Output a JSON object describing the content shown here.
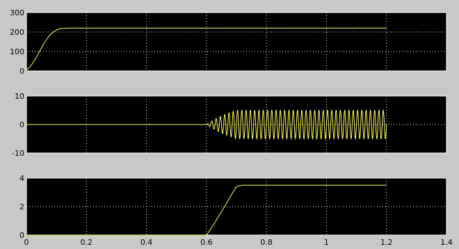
{
  "chart_data": [
    {
      "type": "line",
      "title": "",
      "xlabel": "",
      "ylabel": "",
      "xlim": [
        0,
        1.4
      ],
      "ylim": [
        0,
        300
      ],
      "yticks": [
        "0",
        "100",
        "200",
        "300"
      ],
      "grid": true,
      "line_color": "#ffff66",
      "series": [
        {
          "x": [
            0,
            0.01,
            0.02,
            0.03,
            0.04,
            0.05,
            0.06,
            0.07,
            0.08,
            0.09,
            0.1,
            0.11,
            0.12,
            0.13,
            0.14,
            0.16,
            0.2,
            0.4,
            0.6,
            0.8,
            1.0,
            1.2
          ],
          "y": [
            5,
            18,
            38,
            62,
            90,
            118,
            145,
            168,
            186,
            200,
            210,
            216,
            218,
            219,
            220,
            220,
            220,
            220,
            220,
            220,
            220,
            220
          ]
        }
      ]
    },
    {
      "type": "line",
      "title": "",
      "xlabel": "",
      "ylabel": "",
      "xlim": [
        0,
        1.4
      ],
      "ylim": [
        -10,
        10
      ],
      "yticks": [
        "-10",
        "0",
        "10"
      ],
      "grid": true,
      "line_color": "#ffff66",
      "series": [
        {
          "x": [
            0,
            0.6,
            0.6,
            1.2
          ],
          "y": [
            0,
            0,
            0,
            0
          ],
          "oscillation": {
            "start_x": 0.6,
            "end_x": 1.2,
            "amplitude_envelope_x": [
              0.6,
              0.63,
              0.66,
              0.7,
              1.2
            ],
            "amplitude_envelope_y": [
              0,
              2,
              3.5,
              5,
              5
            ],
            "cycles": 42
          }
        }
      ]
    },
    {
      "type": "line",
      "title": "",
      "xlabel": "",
      "ylabel": "",
      "xlim": [
        0,
        1.4
      ],
      "ylim": [
        0,
        4
      ],
      "yticks": [
        "0",
        "2",
        "4"
      ],
      "xticks": [
        "0",
        "0.2",
        "0.4",
        "0.6",
        "0.8",
        "1",
        "1.2",
        "1.4"
      ],
      "grid": true,
      "line_color": "#ffff66",
      "series": [
        {
          "x": [
            0,
            0.6,
            0.62,
            0.7,
            0.72,
            1.2
          ],
          "y": [
            0,
            0,
            0.6,
            3.4,
            3.5,
            3.5
          ]
        }
      ]
    }
  ]
}
